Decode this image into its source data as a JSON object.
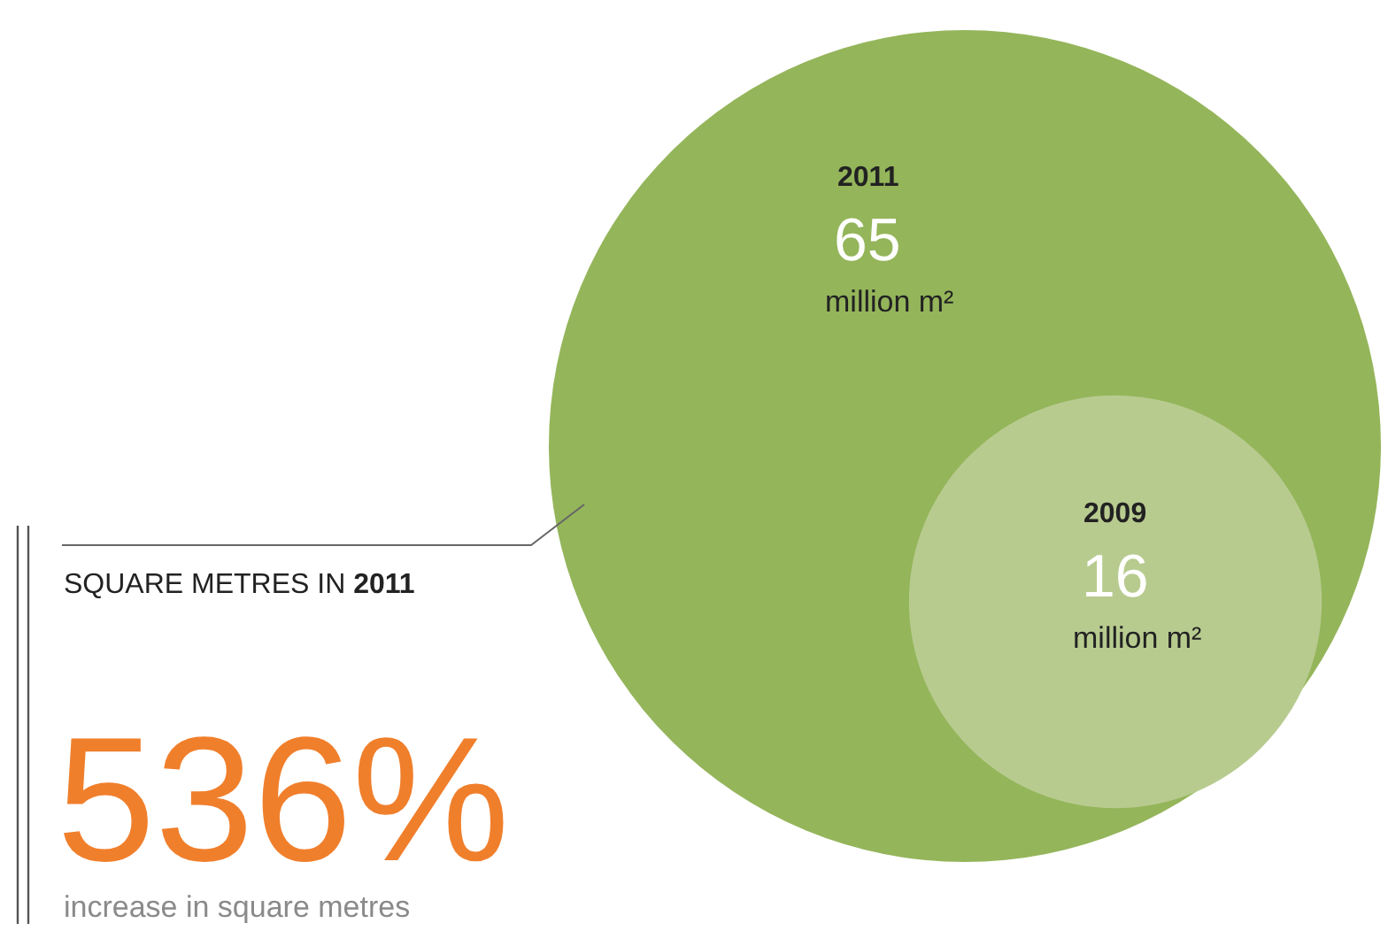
{
  "chart_data": {
    "type": "other",
    "categories": [
      "2011",
      "2009"
    ],
    "values": [
      65,
      16
    ],
    "colors": [
      "#94b55a",
      "#b8cb8f"
    ],
    "data_labels": true,
    "annotations": [
      "million m²",
      "million m²",
      "SQUARE METRES IN 2011",
      "536%",
      "increase in square metres"
    ]
  }
}
